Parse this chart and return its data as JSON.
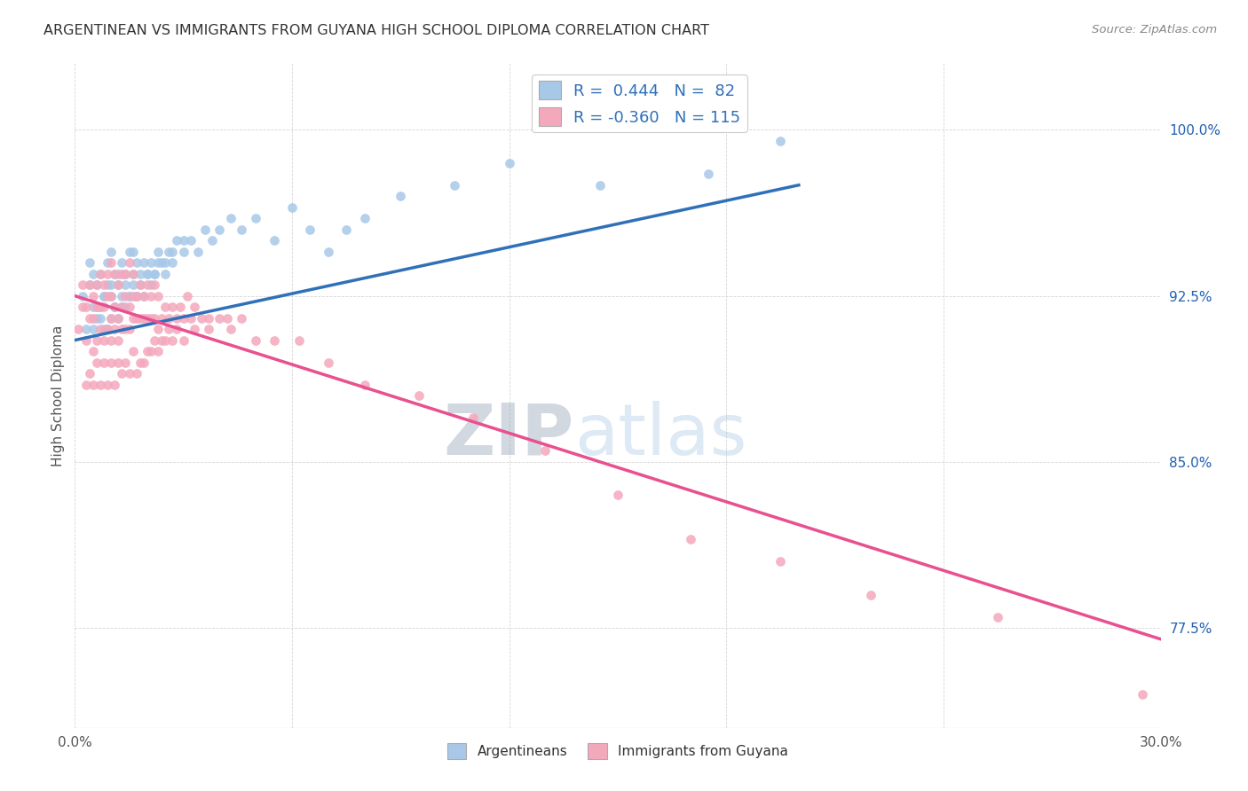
{
  "title": "ARGENTINEAN VS IMMIGRANTS FROM GUYANA HIGH SCHOOL DIPLOMA CORRELATION CHART",
  "source": "Source: ZipAtlas.com",
  "ylabel": "High School Diploma",
  "legend_label_blue": "Argentineans",
  "legend_label_pink": "Immigrants from Guyana",
  "blue_color": "#A8C8E8",
  "pink_color": "#F4A8BC",
  "blue_line_color": "#3070B8",
  "pink_line_color": "#E85090",
  "watermark_zip": "ZIP",
  "watermark_atlas": "atlas",
  "xlim": [
    0.0,
    30.0
  ],
  "ylim": [
    73.0,
    103.0
  ],
  "ytick_values": [
    77.5,
    85.0,
    92.5,
    100.0
  ],
  "ytick_labels": [
    "77.5%",
    "85.0%",
    "92.5%",
    "100.0%"
  ],
  "xtick_positions": [
    0,
    6,
    12,
    18,
    24,
    30
  ],
  "xtick_labels": [
    "0.0%",
    "",
    "",
    "",
    "",
    "30.0%"
  ],
  "blue_trend_x": [
    0.0,
    20.0
  ],
  "blue_trend_y": [
    90.5,
    97.5
  ],
  "pink_trend_x": [
    0.0,
    30.0
  ],
  "pink_trend_y": [
    92.5,
    77.0
  ],
  "blue_points_x": [
    0.2,
    0.3,
    0.4,
    0.4,
    0.5,
    0.5,
    0.6,
    0.6,
    0.7,
    0.7,
    0.8,
    0.8,
    0.9,
    0.9,
    1.0,
    1.0,
    1.0,
    1.1,
    1.1,
    1.2,
    1.2,
    1.3,
    1.3,
    1.4,
    1.4,
    1.5,
    1.5,
    1.6,
    1.6,
    1.7,
    1.7,
    1.8,
    1.9,
    2.0,
    2.1,
    2.2,
    2.3,
    2.4,
    2.5,
    2.6,
    2.7,
    2.8,
    3.0,
    3.2,
    3.4,
    3.6,
    3.8,
    4.0,
    4.3,
    4.6,
    5.0,
    5.5,
    6.0,
    6.5,
    7.0,
    7.5,
    8.0,
    9.0,
    10.5,
    12.0,
    14.5,
    17.5,
    19.5,
    0.5,
    0.6,
    0.7,
    0.8,
    0.9,
    1.0,
    1.1,
    1.2,
    1.3,
    1.4,
    1.5,
    1.6,
    1.7,
    1.8,
    1.9,
    2.0,
    2.1,
    2.2,
    2.3,
    2.5,
    2.7,
    3.0
  ],
  "blue_points_y": [
    92.5,
    91.0,
    93.0,
    94.0,
    92.0,
    93.5,
    91.5,
    93.0,
    92.0,
    93.5,
    91.0,
    92.5,
    93.0,
    94.0,
    91.5,
    92.5,
    94.5,
    92.0,
    93.5,
    91.5,
    93.0,
    92.5,
    94.0,
    92.0,
    93.5,
    92.5,
    94.5,
    93.0,
    94.5,
    92.5,
    94.0,
    93.5,
    94.0,
    93.5,
    94.0,
    93.5,
    94.5,
    94.0,
    93.5,
    94.5,
    94.0,
    95.0,
    94.5,
    95.0,
    94.5,
    95.5,
    95.0,
    95.5,
    96.0,
    95.5,
    96.0,
    95.0,
    96.5,
    95.5,
    94.5,
    95.5,
    96.0,
    97.0,
    97.5,
    98.5,
    97.5,
    98.0,
    99.5,
    91.0,
    92.0,
    91.5,
    92.5,
    91.0,
    93.0,
    92.0,
    93.5,
    92.0,
    93.0,
    92.5,
    93.5,
    92.5,
    93.0,
    92.5,
    93.5,
    93.0,
    93.5,
    94.0,
    94.0,
    94.5,
    95.0
  ],
  "pink_points_x": [
    0.1,
    0.2,
    0.2,
    0.3,
    0.3,
    0.4,
    0.4,
    0.5,
    0.5,
    0.5,
    0.6,
    0.6,
    0.6,
    0.7,
    0.7,
    0.7,
    0.8,
    0.8,
    0.8,
    0.9,
    0.9,
    0.9,
    1.0,
    1.0,
    1.0,
    1.0,
    1.1,
    1.1,
    1.1,
    1.2,
    1.2,
    1.2,
    1.3,
    1.3,
    1.3,
    1.4,
    1.4,
    1.4,
    1.5,
    1.5,
    1.5,
    1.6,
    1.6,
    1.6,
    1.7,
    1.7,
    1.8,
    1.8,
    1.9,
    1.9,
    2.0,
    2.0,
    2.1,
    2.1,
    2.2,
    2.2,
    2.3,
    2.3,
    2.4,
    2.5,
    2.6,
    2.7,
    2.8,
    2.9,
    3.0,
    3.1,
    3.2,
    3.3,
    3.5,
    3.7,
    4.0,
    4.3,
    4.6,
    5.0,
    5.5,
    6.2,
    7.0,
    8.0,
    9.5,
    11.0,
    13.0,
    15.0,
    17.0,
    19.5,
    22.0,
    25.5,
    29.5,
    0.3,
    0.4,
    0.5,
    0.6,
    0.7,
    0.8,
    0.9,
    1.0,
    1.1,
    1.2,
    1.3,
    1.4,
    1.5,
    1.6,
    1.7,
    1.8,
    1.9,
    2.0,
    2.1,
    2.2,
    2.3,
    2.4,
    2.5,
    2.6,
    2.7,
    2.8,
    3.0,
    3.3,
    3.7,
    4.2
  ],
  "pink_points_y": [
    91.0,
    92.0,
    93.0,
    90.5,
    92.0,
    91.5,
    93.0,
    90.0,
    91.5,
    92.5,
    90.5,
    92.0,
    93.0,
    91.0,
    92.0,
    93.5,
    90.5,
    92.0,
    93.0,
    91.0,
    92.5,
    93.5,
    90.5,
    91.5,
    92.5,
    94.0,
    91.0,
    92.0,
    93.5,
    90.5,
    91.5,
    93.0,
    91.0,
    92.0,
    93.5,
    91.0,
    92.5,
    93.5,
    91.0,
    92.0,
    94.0,
    91.5,
    92.5,
    93.5,
    91.5,
    92.5,
    91.5,
    93.0,
    91.5,
    92.5,
    91.5,
    93.0,
    91.5,
    92.5,
    91.5,
    93.0,
    91.0,
    92.5,
    91.5,
    92.0,
    91.5,
    92.0,
    91.5,
    92.0,
    91.5,
    92.5,
    91.5,
    92.0,
    91.5,
    91.5,
    91.5,
    91.0,
    91.5,
    90.5,
    90.5,
    90.5,
    89.5,
    88.5,
    88.0,
    87.0,
    85.5,
    83.5,
    81.5,
    80.5,
    79.0,
    78.0,
    74.5,
    88.5,
    89.0,
    88.5,
    89.5,
    88.5,
    89.5,
    88.5,
    89.5,
    88.5,
    89.5,
    89.0,
    89.5,
    89.0,
    90.0,
    89.0,
    89.5,
    89.5,
    90.0,
    90.0,
    90.5,
    90.0,
    90.5,
    90.5,
    91.0,
    90.5,
    91.0,
    90.5,
    91.0,
    91.0,
    91.5
  ]
}
